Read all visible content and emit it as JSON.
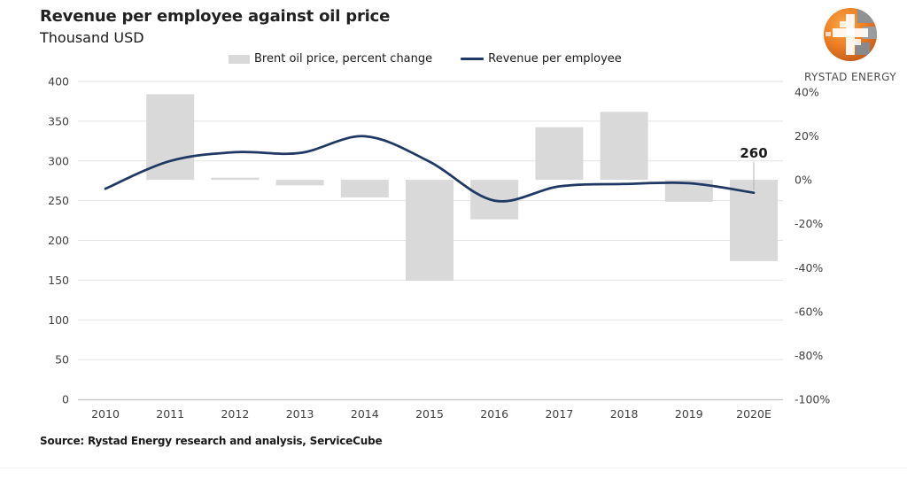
{
  "header": {
    "title": "Revenue per employee against oil price",
    "subtitle": "Thousand USD"
  },
  "logo": {
    "text": "RYSTAD ENERGY"
  },
  "source": {
    "text": "Source: Rystad Energy research and analysis, ServiceCube"
  },
  "annotation": {
    "label": "260",
    "category": "2020E"
  },
  "colors": {
    "bar": "#d9d9d9",
    "line": "#1f3864",
    "gridline": "#e2e2e2",
    "axis_line": "#c4c4c4",
    "tick_text": "#3f3f3f",
    "leader_line": "#b3b3b3",
    "logo_orange": "#ed7d23",
    "logo_gray": "#8f9193"
  },
  "chart_data": {
    "type": "bar",
    "subtype": "combo-bar-line-dual-axis",
    "title": "Revenue per employee against oil price",
    "subtitle": "Thousand USD",
    "grid": true,
    "legend_position": "top",
    "categories": [
      "2010",
      "2011",
      "2012",
      "2013",
      "2014",
      "2015",
      "2016",
      "2017",
      "2018",
      "2019",
      "2020E"
    ],
    "series": [
      {
        "name": "Brent oil price, percent change",
        "type": "bar",
        "axis": "right",
        "unit": "%",
        "values": [
          null,
          39,
          1,
          -2.5,
          -8,
          -46,
          -18,
          24,
          31,
          -10,
          -37
        ]
      },
      {
        "name": "Revenue per employee",
        "type": "line",
        "axis": "left",
        "unit": "thousand USD",
        "values": [
          265,
          300,
          311,
          310,
          331,
          299,
          250,
          268,
          271,
          272,
          260
        ]
      }
    ],
    "left_axis": {
      "tick_values": [
        400,
        350,
        300,
        250,
        200,
        150,
        100,
        50,
        0
      ],
      "range": [
        0,
        400
      ]
    },
    "right_axis": {
      "tick_values": [
        40,
        20,
        0,
        -20,
        -40,
        -60,
        -80,
        -100
      ],
      "range": [
        -100,
        40
      ],
      "suffix": "%"
    }
  }
}
